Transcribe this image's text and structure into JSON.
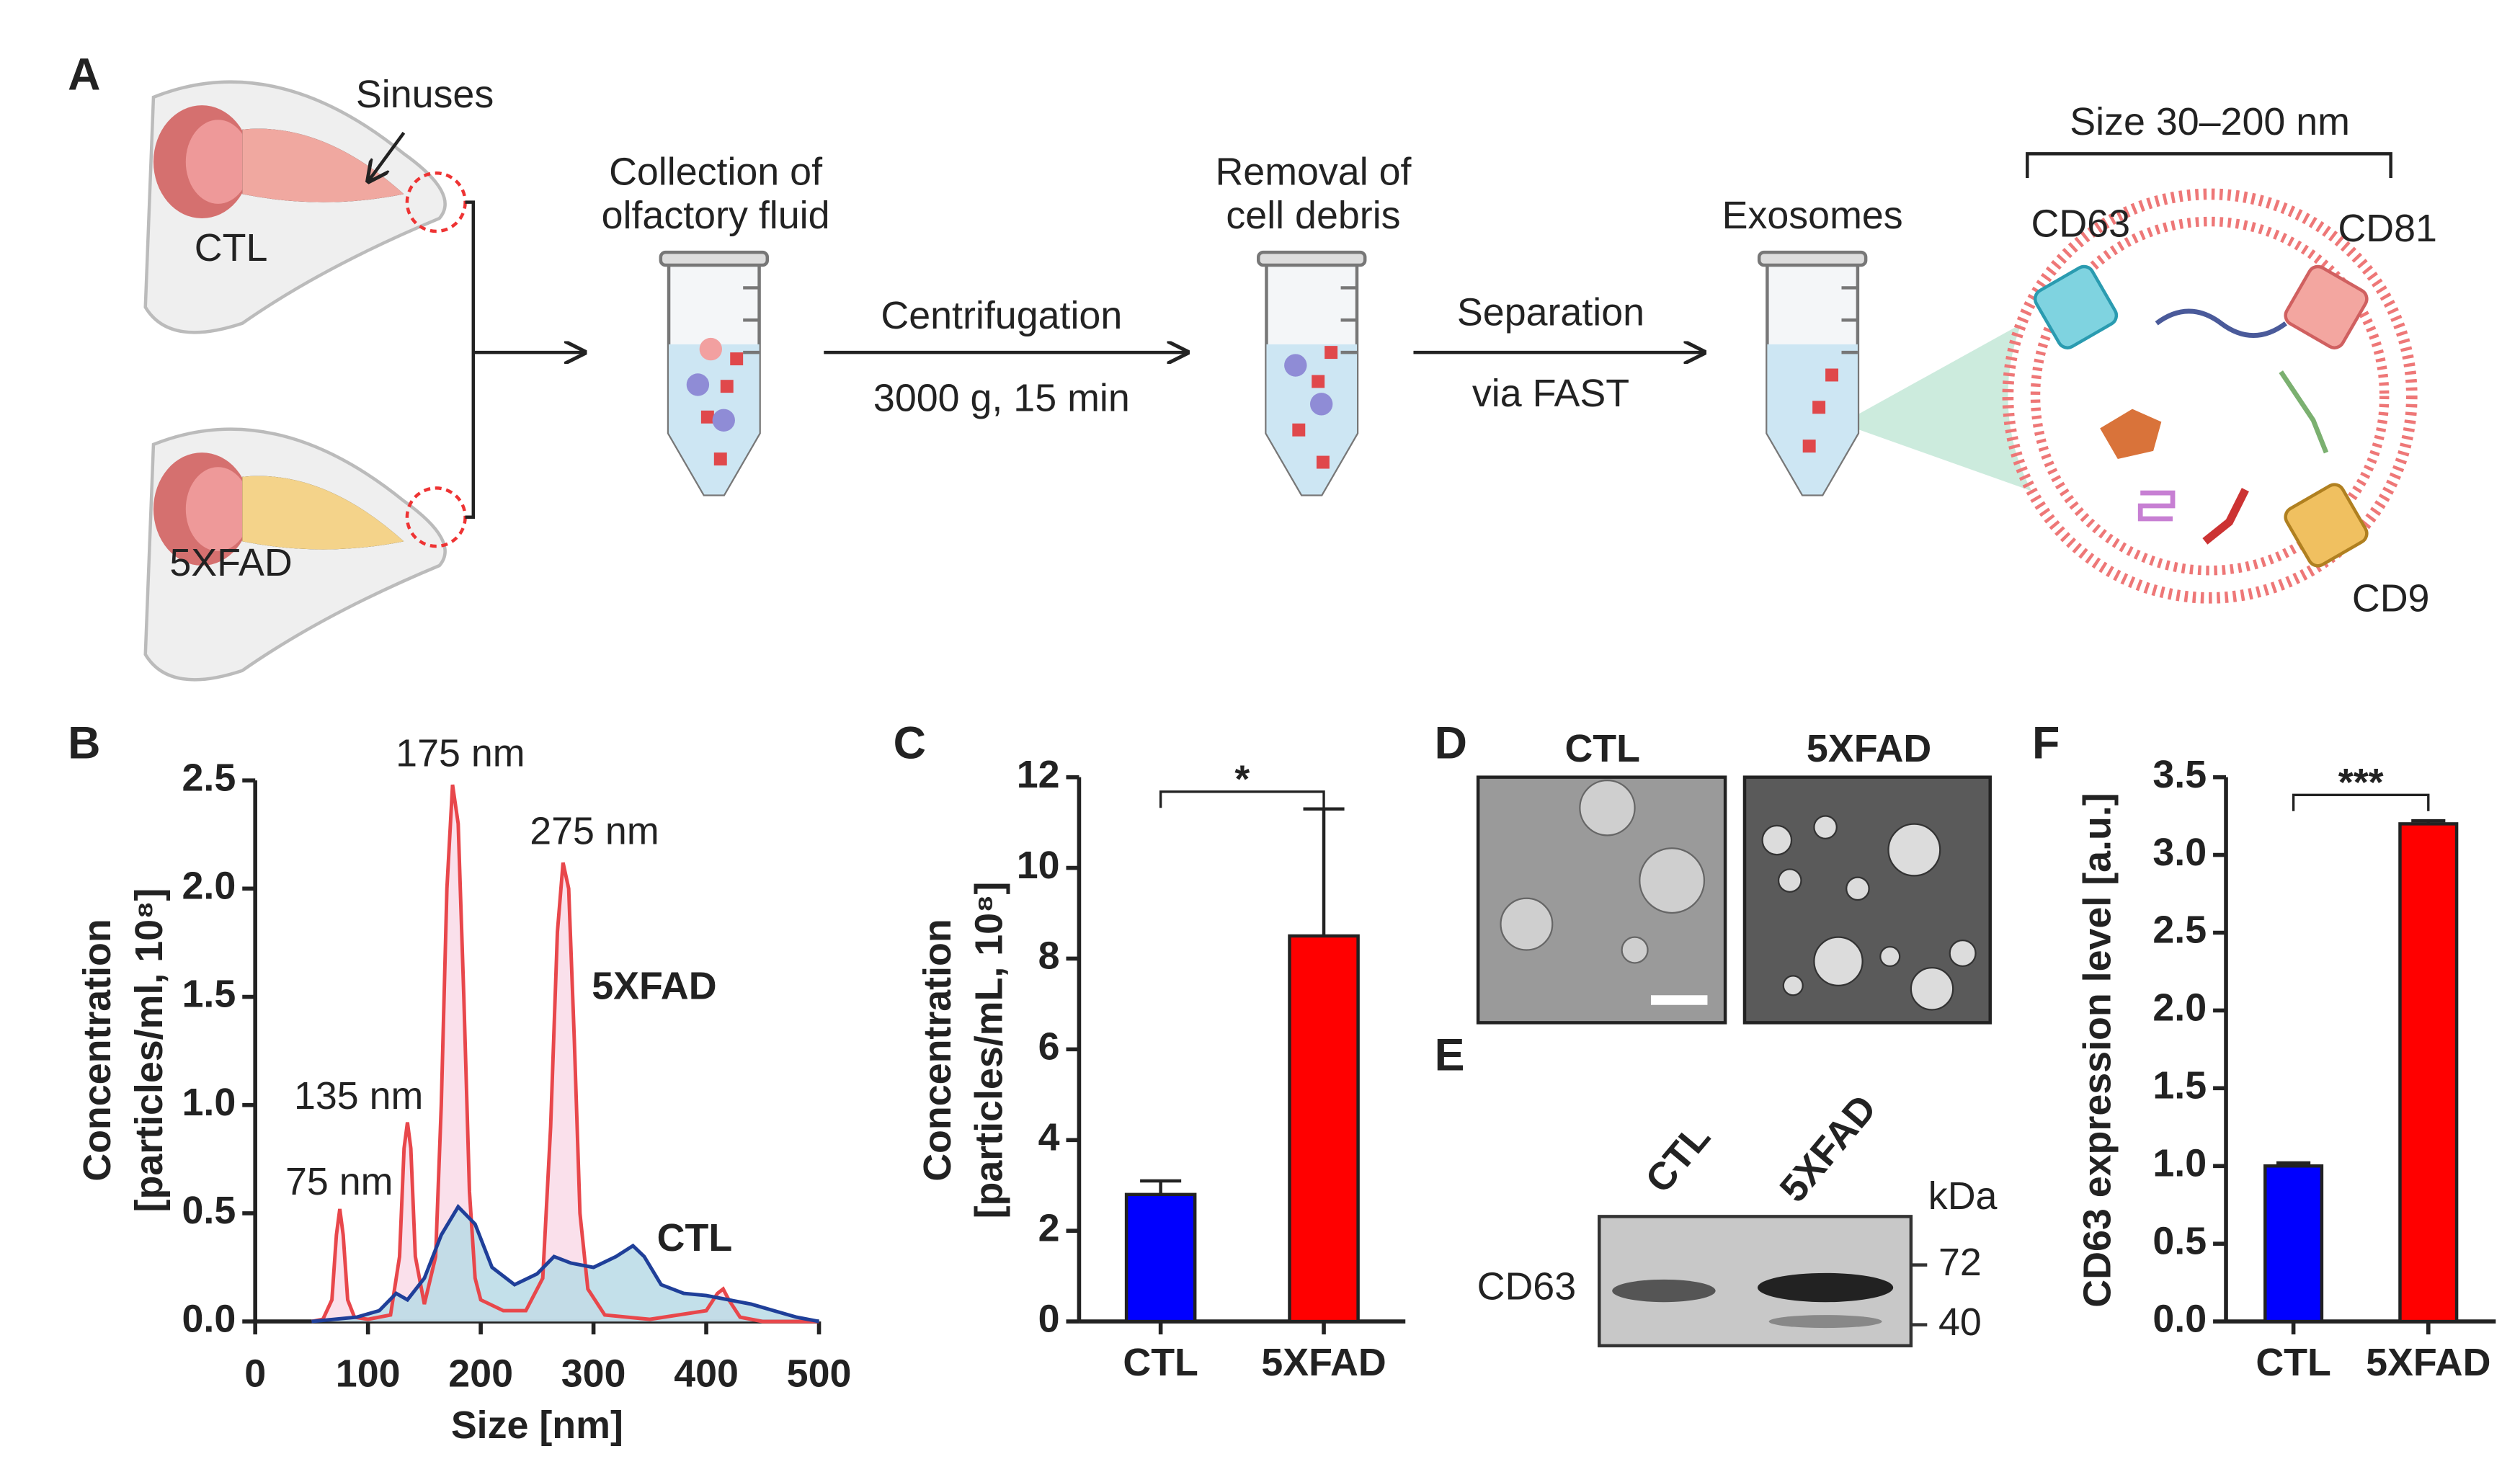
{
  "schematic": {
    "panel_label": "A",
    "sinuses": "Sinuses",
    "mouse_ctl": "CTL",
    "mouse_5xfad": "5XFAD",
    "step1_line1": "Collection of",
    "step1_line2": "olfactory fluid",
    "step2_top": "Centrifugation",
    "step2_bottom": "3000 g, 15 min",
    "step3_line1": "Removal of",
    "step3_line2": "cell debris",
    "step4_top": "Separation",
    "step4_bottom": "via FAST",
    "exosomes": "Exosomes",
    "size": "Size 30–200 nm",
    "markers": [
      "CD63",
      "CD81",
      "CD9"
    ]
  },
  "chart_data": [
    {
      "type": "line",
      "panel_label": "B",
      "xlabel": "Size [nm]",
      "ylabel": [
        "Concentration",
        "[particles/ml, 10⁸]"
      ],
      "xlim": [
        0,
        500
      ],
      "xticks": [
        0,
        100,
        200,
        300,
        400,
        500
      ],
      "ylim": [
        0,
        2.5
      ],
      "yticks": [
        {
          "value": 0,
          "label": "0.0"
        },
        0.5,
        {
          "value": 1,
          "label": "1.0"
        },
        1.5,
        {
          "value": 2,
          "label": "2.0"
        },
        2.5
      ],
      "annotations": [
        "75 nm",
        "135 nm",
        "175 nm",
        "275 nm"
      ],
      "series": [
        {
          "name": "5XFAD",
          "color": "#e8474b",
          "fill": "#f9dbe8",
          "x": [
            50,
            60,
            68,
            72,
            75,
            78,
            82,
            88,
            100,
            120,
            128,
            132,
            135,
            138,
            142,
            150,
            160,
            165,
            170,
            175,
            180,
            185,
            190,
            195,
            200,
            220,
            240,
            255,
            262,
            268,
            273,
            278,
            283,
            288,
            295,
            310,
            350,
            400,
            410,
            415,
            420,
            430,
            450,
            500
          ],
          "values": [
            0,
            0.01,
            0.1,
            0.4,
            0.52,
            0.4,
            0.1,
            0.02,
            0.01,
            0.03,
            0.3,
            0.8,
            0.92,
            0.8,
            0.3,
            0.08,
            0.3,
            1.0,
            2.0,
            2.48,
            2.3,
            1.5,
            0.6,
            0.2,
            0.1,
            0.05,
            0.05,
            0.2,
            0.9,
            1.8,
            2.12,
            2.0,
            1.3,
            0.5,
            0.15,
            0.03,
            0.01,
            0.05,
            0.13,
            0.15,
            0.1,
            0.02,
            0,
            0
          ]
        },
        {
          "name": "CTL",
          "color": "#1f3f99",
          "fill": "#b9dbe6",
          "x": [
            50,
            90,
            110,
            125,
            135,
            150,
            165,
            180,
            195,
            210,
            230,
            250,
            265,
            280,
            300,
            320,
            335,
            345,
            360,
            380,
            400,
            420,
            440,
            460,
            480,
            500
          ],
          "values": [
            0,
            0.02,
            0.05,
            0.13,
            0.1,
            0.2,
            0.4,
            0.53,
            0.45,
            0.25,
            0.17,
            0.22,
            0.3,
            0.27,
            0.25,
            0.3,
            0.35,
            0.3,
            0.17,
            0.13,
            0.12,
            0.1,
            0.08,
            0.05,
            0.02,
            0
          ]
        }
      ]
    },
    {
      "type": "bar",
      "panel_label": "C",
      "ylabel": [
        "Concentration",
        "[particles/mL, 10⁸]"
      ],
      "categories": [
        "CTL",
        "5XFAD"
      ],
      "values": [
        2.8,
        8.5
      ],
      "errors": [
        0.3,
        2.8
      ],
      "colors": [
        "#0000ff",
        "#ff0000"
      ],
      "ylim": [
        0,
        12
      ],
      "yticks": [
        0,
        2,
        4,
        6,
        8,
        10,
        12
      ],
      "significance": "*"
    },
    {
      "type": "bar",
      "panel_label": "F",
      "ylabel": "CD63 expression level [a.u.]",
      "categories": [
        "CTL",
        "5XFAD"
      ],
      "values": [
        1.0,
        3.2
      ],
      "errors": [
        0.02,
        0.02
      ],
      "colors": [
        "#0000ff",
        "#ff0000"
      ],
      "ylim": [
        0,
        3.5
      ],
      "yticks": [
        {
          "value": 0,
          "label": "0.0"
        },
        0.5,
        {
          "value": 1,
          "label": "1.0"
        },
        1.5,
        {
          "value": 2,
          "label": "2.0"
        },
        2.5,
        {
          "value": 3,
          "label": "3.0"
        },
        3.5
      ],
      "significance": "***"
    }
  ],
  "micrographs": {
    "panel_label": "D",
    "labels": [
      "CTL",
      "5XFAD"
    ]
  },
  "western_blot": {
    "panel_label": "E",
    "lanes": [
      "CTL",
      "5XFAD"
    ],
    "unit": "kDa",
    "band": "CD63",
    "markers": [
      72,
      40
    ]
  }
}
